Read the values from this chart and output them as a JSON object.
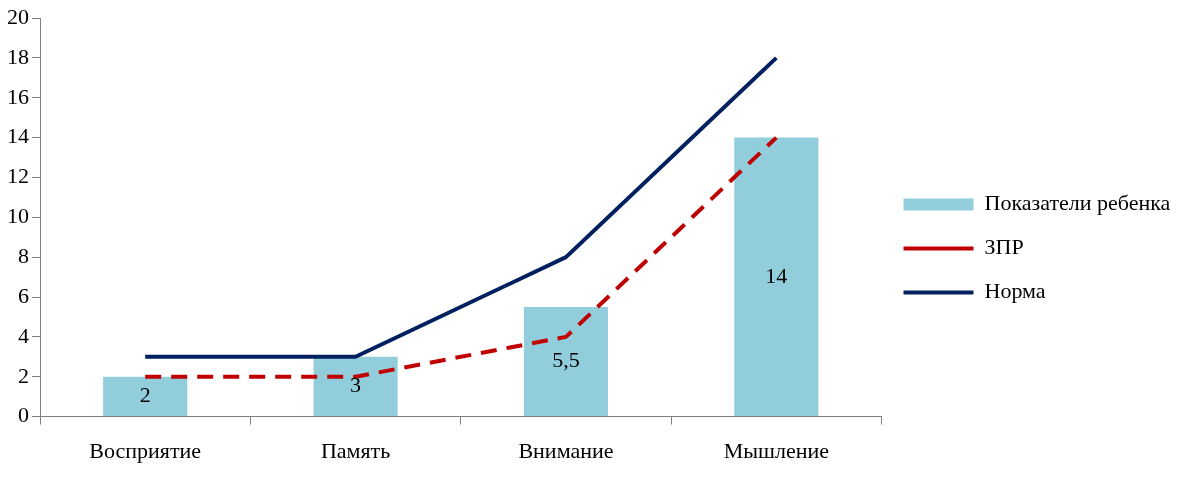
{
  "chart_data": {
    "type": "bar",
    "categories": [
      "Восприятие",
      "Память",
      "Внимание",
      "Мышление"
    ],
    "series": [
      {
        "name": "Показатели ребенка",
        "color": "#92cddc",
        "values": [
          2,
          3,
          5.5,
          14
        ],
        "value_labels": [
          "2",
          "3",
          "5,5",
          "14"
        ]
      },
      {
        "name": "ЗПР",
        "type": "line",
        "color": "#c00000",
        "line_style": "dashed",
        "values": [
          2,
          2,
          4,
          14
        ]
      },
      {
        "name": "Норма",
        "type": "line",
        "color": "#002060",
        "line_style": "solid",
        "values": [
          3,
          3,
          8,
          18
        ]
      }
    ],
    "ylim": [
      0,
      20
    ],
    "yticks": [
      0,
      2,
      4,
      6,
      8,
      10,
      12,
      14,
      16,
      18,
      20
    ],
    "grid": false,
    "legend": "right",
    "marker": "none"
  }
}
